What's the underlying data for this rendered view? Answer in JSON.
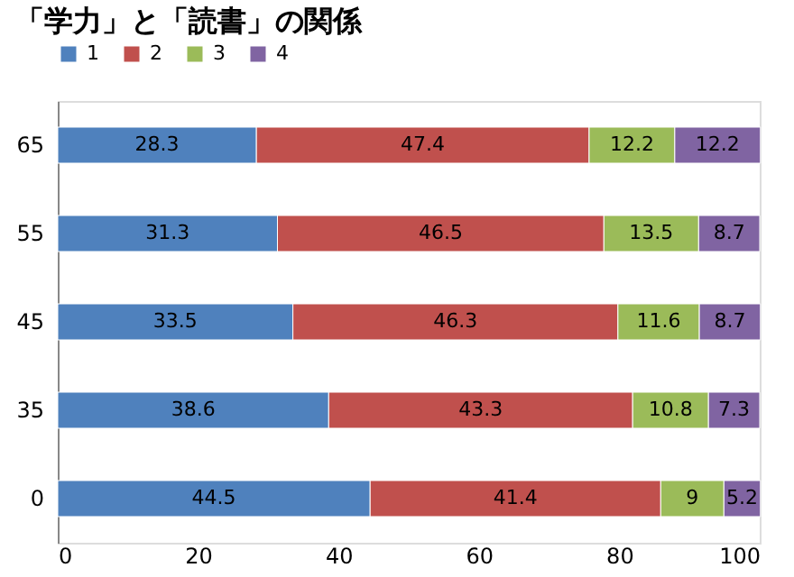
{
  "chart_data": {
    "type": "bar",
    "title": "「学力」と「読書」の関係",
    "orientation": "horizontal",
    "stacked": true,
    "categories": [
      "65",
      "55",
      "45",
      "35",
      "0"
    ],
    "series": [
      {
        "name": "1",
        "color": "#4f81bd",
        "values": [
          28.3,
          31.3,
          33.5,
          38.6,
          44.5
        ]
      },
      {
        "name": "2",
        "color": "#c0504d",
        "values": [
          47.4,
          46.5,
          46.3,
          43.3,
          41.4
        ]
      },
      {
        "name": "3",
        "color": "#9bbb59",
        "values": [
          12.2,
          13.5,
          11.6,
          10.8,
          9
        ]
      },
      {
        "name": "4",
        "color": "#8064a2",
        "values": [
          12.2,
          8.7,
          8.7,
          7.3,
          5.2
        ]
      }
    ],
    "xlim": [
      0,
      100
    ],
    "xticks": [
      0,
      20,
      40,
      60,
      80,
      100
    ],
    "grid": false,
    "legend": "top",
    "data_labels": true
  }
}
